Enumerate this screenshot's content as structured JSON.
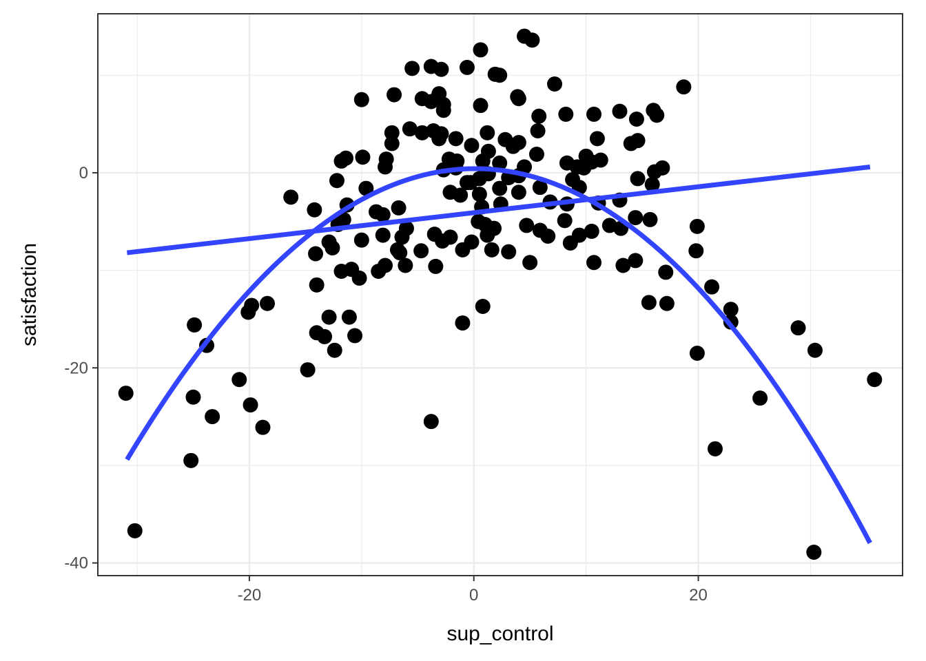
{
  "chart_data": {
    "type": "scatter",
    "title": "",
    "xlabel": "sup_control",
    "ylabel": "satisfaction",
    "xlim": [
      -33.5,
      38.2
    ],
    "ylim": [
      -41.3,
      16.3
    ],
    "x_ticks": [
      -20,
      0,
      20
    ],
    "y_ticks": [
      -40,
      -20,
      0
    ],
    "x_tick_labels": [
      "-20",
      "0",
      "20"
    ],
    "y_tick_labels": [
      "-40",
      "-20",
      "0"
    ],
    "grid": true,
    "legend": "none",
    "point_color": "#000000",
    "line_color": "#3344FF",
    "points": [
      [
        4.5,
        14
      ],
      [
        5.2,
        13.6
      ],
      [
        0.6,
        12.6
      ],
      [
        -5.5,
        10.7
      ],
      [
        -3.8,
        10.9
      ],
      [
        -2.9,
        10.6
      ],
      [
        -0.6,
        10.8
      ],
      [
        1.9,
        10.1
      ],
      [
        2.3,
        10.0
      ],
      [
        7.2,
        9.1
      ],
      [
        18.7,
        8.8
      ],
      [
        -10,
        7.5
      ],
      [
        -7.1,
        8
      ],
      [
        -4.6,
        7.6
      ],
      [
        -3.8,
        7.3
      ],
      [
        -3.1,
        8.1
      ],
      [
        -2.7,
        7.0
      ],
      [
        -2.7,
        6.4
      ],
      [
        0.6,
        6.9
      ],
      [
        3.9,
        7.8
      ],
      [
        4,
        7.6
      ],
      [
        13,
        6.3
      ],
      [
        16,
        6.4
      ],
      [
        16.3,
        5.9
      ],
      [
        10.7,
        6.0
      ],
      [
        8.2,
        6.0
      ],
      [
        5.8,
        5.8
      ],
      [
        14.5,
        5.5
      ],
      [
        -7.3,
        4.1
      ],
      [
        -7.3,
        3.0
      ],
      [
        -5.7,
        4.5
      ],
      [
        -4.6,
        4.1
      ],
      [
        -3.6,
        4.3
      ],
      [
        -3.1,
        3.5
      ],
      [
        -2.9,
        4.0
      ],
      [
        -1.6,
        3.5
      ],
      [
        -0.2,
        2.8
      ],
      [
        1.2,
        4.1
      ],
      [
        2.8,
        3.4
      ],
      [
        3.5,
        2.7
      ],
      [
        4,
        3.1
      ],
      [
        5.7,
        4.3
      ],
      [
        11,
        3.5
      ],
      [
        14.0,
        3.0
      ],
      [
        14.6,
        3.3
      ],
      [
        -11.8,
        1.2
      ],
      [
        -11.4,
        1.5
      ],
      [
        -9.9,
        1.6
      ],
      [
        -7.8,
        1.4
      ],
      [
        -2.2,
        1.4
      ],
      [
        -1.5,
        1.2
      ],
      [
        0.8,
        1.2
      ],
      [
        1.3,
        2.2
      ],
      [
        2.3,
        1.0
      ],
      [
        4.5,
        0.6
      ],
      [
        5.6,
        1.9
      ],
      [
        8.3,
        1.0
      ],
      [
        9.2,
        0.6
      ],
      [
        10.0,
        1.7
      ],
      [
        10.5,
        1.1
      ],
      [
        11.3,
        1.3
      ],
      [
        16.1,
        0.1
      ],
      [
        16.8,
        0.5
      ],
      [
        -7.9,
        0.6
      ],
      [
        -2.7,
        0.3
      ],
      [
        -1.6,
        0.5
      ],
      [
        -0.6,
        -1.0
      ],
      [
        0.5,
        -0.6
      ],
      [
        1.3,
        -0.1
      ],
      [
        2.3,
        -1.6
      ],
      [
        3.1,
        -0.5
      ],
      [
        4.0,
        -0.3
      ],
      [
        5.9,
        -1.5
      ],
      [
        8.8,
        -0.7
      ],
      [
        9.8,
        0.5
      ],
      [
        14.6,
        -0.6
      ],
      [
        15.9,
        -1.2
      ],
      [
        -12.2,
        -0.8
      ],
      [
        -9.6,
        -1.6
      ],
      [
        -16.3,
        -2.5
      ],
      [
        -14.2,
        -3.8
      ],
      [
        -11.3,
        -3.3
      ],
      [
        -8.7,
        -4.0
      ],
      [
        -8.1,
        -4.3
      ],
      [
        -6.7,
        -3.6
      ],
      [
        -2.1,
        -2.0
      ],
      [
        -1.2,
        -2.3
      ],
      [
        -0.3,
        -1.0
      ],
      [
        0.5,
        -2.2
      ],
      [
        0.7,
        -3.5
      ],
      [
        2.4,
        -3.2
      ],
      [
        4.0,
        -2.0
      ],
      [
        6.8,
        -3.0
      ],
      [
        8.3,
        -3.2
      ],
      [
        9.4,
        -1.5
      ],
      [
        11.1,
        -3.1
      ],
      [
        13.0,
        -2.8
      ],
      [
        -11.6,
        -4.8
      ],
      [
        -12.1,
        -5.3
      ],
      [
        -12.9,
        -7.1
      ],
      [
        -12.6,
        -7.7
      ],
      [
        -14.1,
        -8.3
      ],
      [
        -10.0,
        -6.9
      ],
      [
        -8.1,
        -6.4
      ],
      [
        -6.4,
        -6.6
      ],
      [
        -6.0,
        -5.7
      ],
      [
        -3.5,
        -6.3
      ],
      [
        -2.8,
        -7.0
      ],
      [
        -2.1,
        -6.6
      ],
      [
        -1.0,
        -7.9
      ],
      [
        -0.2,
        -7.1
      ],
      [
        0.4,
        -5.0
      ],
      [
        1.0,
        -5.3
      ],
      [
        1.2,
        -6.4
      ],
      [
        1.8,
        -5.7
      ],
      [
        3.1,
        -8.1
      ],
      [
        4.7,
        -5.4
      ],
      [
        5.9,
        -5.9
      ],
      [
        6.6,
        -6.5
      ],
      [
        8.1,
        -4.9
      ],
      [
        8.6,
        -7.2
      ],
      [
        9.4,
        -6.4
      ],
      [
        10.5,
        -6.0
      ],
      [
        12.1,
        -5.4
      ],
      [
        13.1,
        -5.7
      ],
      [
        14.4,
        -4.6
      ],
      [
        15.7,
        -4.8
      ],
      [
        19.9,
        -5.5
      ],
      [
        -6.6,
        -8.2
      ],
      [
        -6.8,
        -7.9
      ],
      [
        -4.7,
        -8.0
      ],
      [
        -6.1,
        -9.5
      ],
      [
        -7.9,
        -9.5
      ],
      [
        -8.5,
        -10.1
      ],
      [
        -10.9,
        -9.9
      ],
      [
        -11.8,
        -10.1
      ],
      [
        -10.2,
        -10.8
      ],
      [
        -14.0,
        -11.5
      ],
      [
        -3.4,
        -9.6
      ],
      [
        1.6,
        -7.9
      ],
      [
        5.0,
        -9.2
      ],
      [
        10.7,
        -9.2
      ],
      [
        13.3,
        -9.5
      ],
      [
        14.4,
        -9.0
      ],
      [
        17.1,
        -10.2
      ],
      [
        19.8,
        -8.0
      ],
      [
        -20.1,
        -14.3
      ],
      [
        -19.8,
        -13.6
      ],
      [
        -18.4,
        -13.4
      ],
      [
        -14.0,
        -16.4
      ],
      [
        -13.3,
        -16.8
      ],
      [
        -12.9,
        -14.8
      ],
      [
        -11.1,
        -14.8
      ],
      [
        -10.6,
        -16.7
      ],
      [
        -12.4,
        -18.2
      ],
      [
        -1.0,
        -15.4
      ],
      [
        0.8,
        -13.7
      ],
      [
        15.6,
        -13.3
      ],
      [
        17.2,
        -13.4
      ],
      [
        21.2,
        -11.7
      ],
      [
        22.9,
        -14.0
      ],
      [
        22.9,
        -15.3
      ],
      [
        28.9,
        -15.9
      ],
      [
        -24.9,
        -15.6
      ],
      [
        -23.8,
        -17.7
      ],
      [
        -31.0,
        -22.6
      ],
      [
        -25.0,
        -23.0
      ],
      [
        -23.3,
        -25.0
      ],
      [
        -20.9,
        -21.2
      ],
      [
        -19.9,
        -23.8
      ],
      [
        -18.8,
        -26.1
      ],
      [
        -14.8,
        -20.2
      ],
      [
        -3.8,
        -25.5
      ],
      [
        19.9,
        -18.5
      ],
      [
        30.4,
        -18.2
      ],
      [
        25.5,
        -23.1
      ],
      [
        35.7,
        -21.2
      ],
      [
        -25.2,
        -29.5
      ],
      [
        -30.2,
        -36.7
      ],
      [
        21.5,
        -28.3
      ],
      [
        30.3,
        -38.9
      ]
    ],
    "linear_fit": {
      "x": [
        -30.9,
        35.3
      ],
      "y": [
        -8.2,
        0.6
      ]
    },
    "quadratic_fit": {
      "coefficients": [
        0.42,
        0.0073,
        -0.031
      ],
      "x_range": [
        -30.9,
        35.3
      ]
    }
  }
}
